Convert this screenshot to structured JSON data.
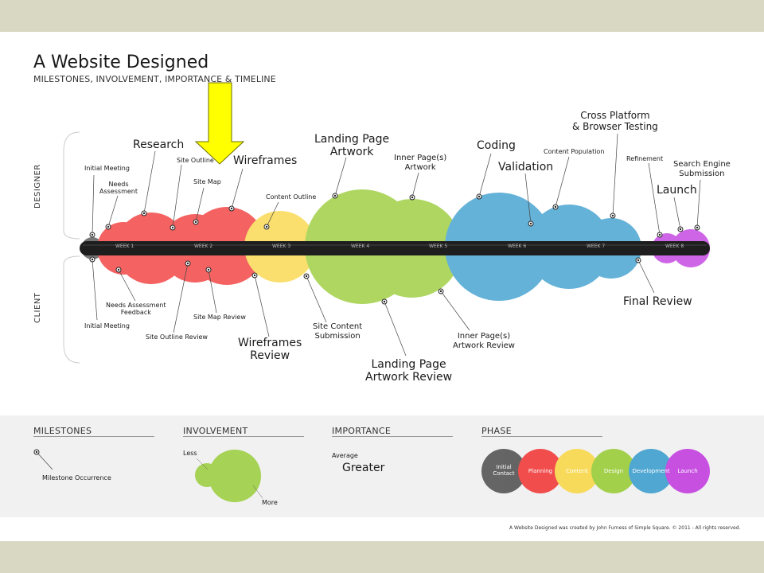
{
  "title": "A Website Designed",
  "subtitle": "MILESTONES, INVOLVEMENT, IMPORTANCE & TIMELINE",
  "side_labels": {
    "designer": "DESIGNER",
    "client": "CLIENT"
  },
  "weeks": [
    "WEEK 1",
    "WEEK 2",
    "WEEK 3",
    "WEEK 4",
    "WEEK 5",
    "WEEK 6",
    "WEEK 7",
    "WEEK 8"
  ],
  "designer_milestones": {
    "initial_meeting": "Initial Meeting",
    "needs_assessment": "Needs\nAssessment",
    "research": "Research",
    "site_outline": "Site Outline",
    "site_map": "Site Map",
    "wireframes": "Wireframes",
    "content_outline": "Content Outline",
    "landing_page_artwork": "Landing Page\nArtwork",
    "inner_pages_artwork": "Inner Page(s)\nArtwork",
    "coding": "Coding",
    "validation": "Validation",
    "content_population": "Content Population",
    "cross_platform": "Cross Platform\n& Browser Testing",
    "refinement": "Refinement",
    "search_engine_submission": "Search Engine\nSubmission",
    "launch": "Launch"
  },
  "client_milestones": {
    "initial_meeting": "Initial Meeting",
    "needs_assessment_feedback": "Needs Assessment\nFeedback",
    "site_outline_review": "Site Outline Review",
    "site_map_review": "Site Map Review",
    "wireframes_review": "Wireframes\nReview",
    "site_content_submission": "Site Content\nSubmission",
    "landing_page_artwork_review": "Landing Page\nArtwork Review",
    "inner_pages_artwork_review": "Inner Page(s)\nArtwork Review",
    "final_review": "Final Review"
  },
  "legend": {
    "milestones": {
      "heading": "MILESTONES",
      "item": "Milestone Occurrence"
    },
    "involvement": {
      "heading": "INVOLVEMENT",
      "less": "Less",
      "more": "More"
    },
    "importance": {
      "heading": "IMPORTANCE",
      "average": "Average",
      "greater": "Greater"
    },
    "phase": {
      "heading": "PHASE",
      "items": [
        "Initial\nContact",
        "Planning",
        "Content",
        "Design",
        "Development",
        "Launch"
      ]
    }
  },
  "colors": {
    "initial_contact": "#555555",
    "planning": "#f23c3c",
    "content": "#f9d84a",
    "design": "#9acd3a",
    "development": "#3f9fcf",
    "launch": "#c33fe0",
    "arrow": "#ffff00"
  },
  "footer": "A Website Designed was created by John Furness of Simple Square. © 2011 - All rights reserved."
}
